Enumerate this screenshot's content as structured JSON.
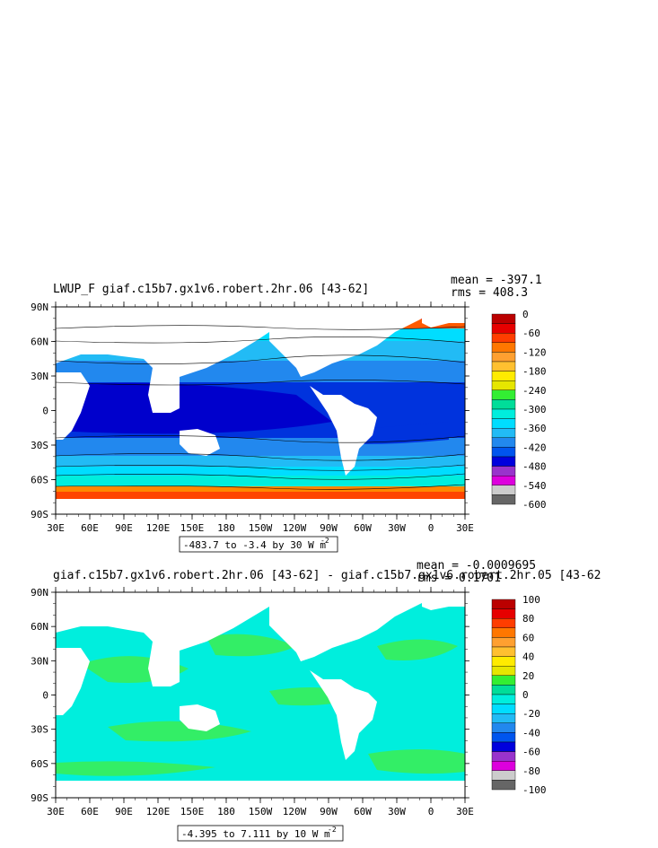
{
  "chart_data": [
    {
      "type": "heatmap",
      "title": "LWUP_F giaf.c15b7.gx1v6.robert.2hr.06 [43-62]",
      "stats": {
        "mean": "mean = -397.1",
        "rms": "rms = 408.3"
      },
      "lat_ticks": [
        "90N",
        "60N",
        "30N",
        "0",
        "30S",
        "60S",
        "90S"
      ],
      "lon_ticks": [
        "30E",
        "60E",
        "90E",
        "120E",
        "150E",
        "180",
        "150W",
        "120W",
        "90W",
        "60W",
        "30W",
        "0",
        "30E"
      ],
      "range_note": "-483.7 to -3.4 by 30  W m",
      "range_exp": "-2",
      "colorbar_labels": [
        "0",
        "-60",
        "-120",
        "-180",
        "-240",
        "-300",
        "-360",
        "-420",
        "-480",
        "-540",
        "-600"
      ],
      "colorbar_colors": [
        "#bb0000",
        "#e60000",
        "#ff3d00",
        "#ff7700",
        "#ffa030",
        "#ffc030",
        "#ffeb00",
        "#e6e600",
        "#33ee33",
        "#00dd99",
        "#00eedd",
        "#00ddff",
        "#22bbf5",
        "#2288ee",
        "#0055ee",
        "#0000dd",
        "#9933cc",
        "#dd00dd",
        "#cccccc",
        "#666666"
      ]
    },
    {
      "type": "heatmap",
      "title": "giaf.c15b7.gx1v6.robert.2hr.06 [43-62] - giaf.c15b7.gx1v6.robert.2hr.05 [43-62",
      "stats": {
        "mean": "mean = -0.0009695",
        "rms": "rms = 0.1701"
      },
      "lat_ticks": [
        "90N",
        "60N",
        "30N",
        "0",
        "30S",
        "60S",
        "90S"
      ],
      "lon_ticks": [
        "30E",
        "60E",
        "90E",
        "120E",
        "150E",
        "180",
        "150W",
        "120W",
        "90W",
        "60W",
        "30W",
        "0",
        "30E"
      ],
      "range_note": "-4.395 to 7.111 by 10  W m",
      "range_exp": "-2",
      "colorbar_labels": [
        "100",
        "80",
        "60",
        "40",
        "20",
        "0",
        "-20",
        "-40",
        "-60",
        "-80",
        "-100"
      ],
      "colorbar_colors": [
        "#bb0000",
        "#e60000",
        "#ff3d00",
        "#ff7700",
        "#ffa030",
        "#ffc030",
        "#ffeb00",
        "#e6e600",
        "#33ee33",
        "#00dd99",
        "#00eedd",
        "#00ddff",
        "#22bbf5",
        "#2288ee",
        "#0055ee",
        "#0000dd",
        "#9933cc",
        "#dd00dd",
        "#cccccc",
        "#666666"
      ]
    }
  ]
}
